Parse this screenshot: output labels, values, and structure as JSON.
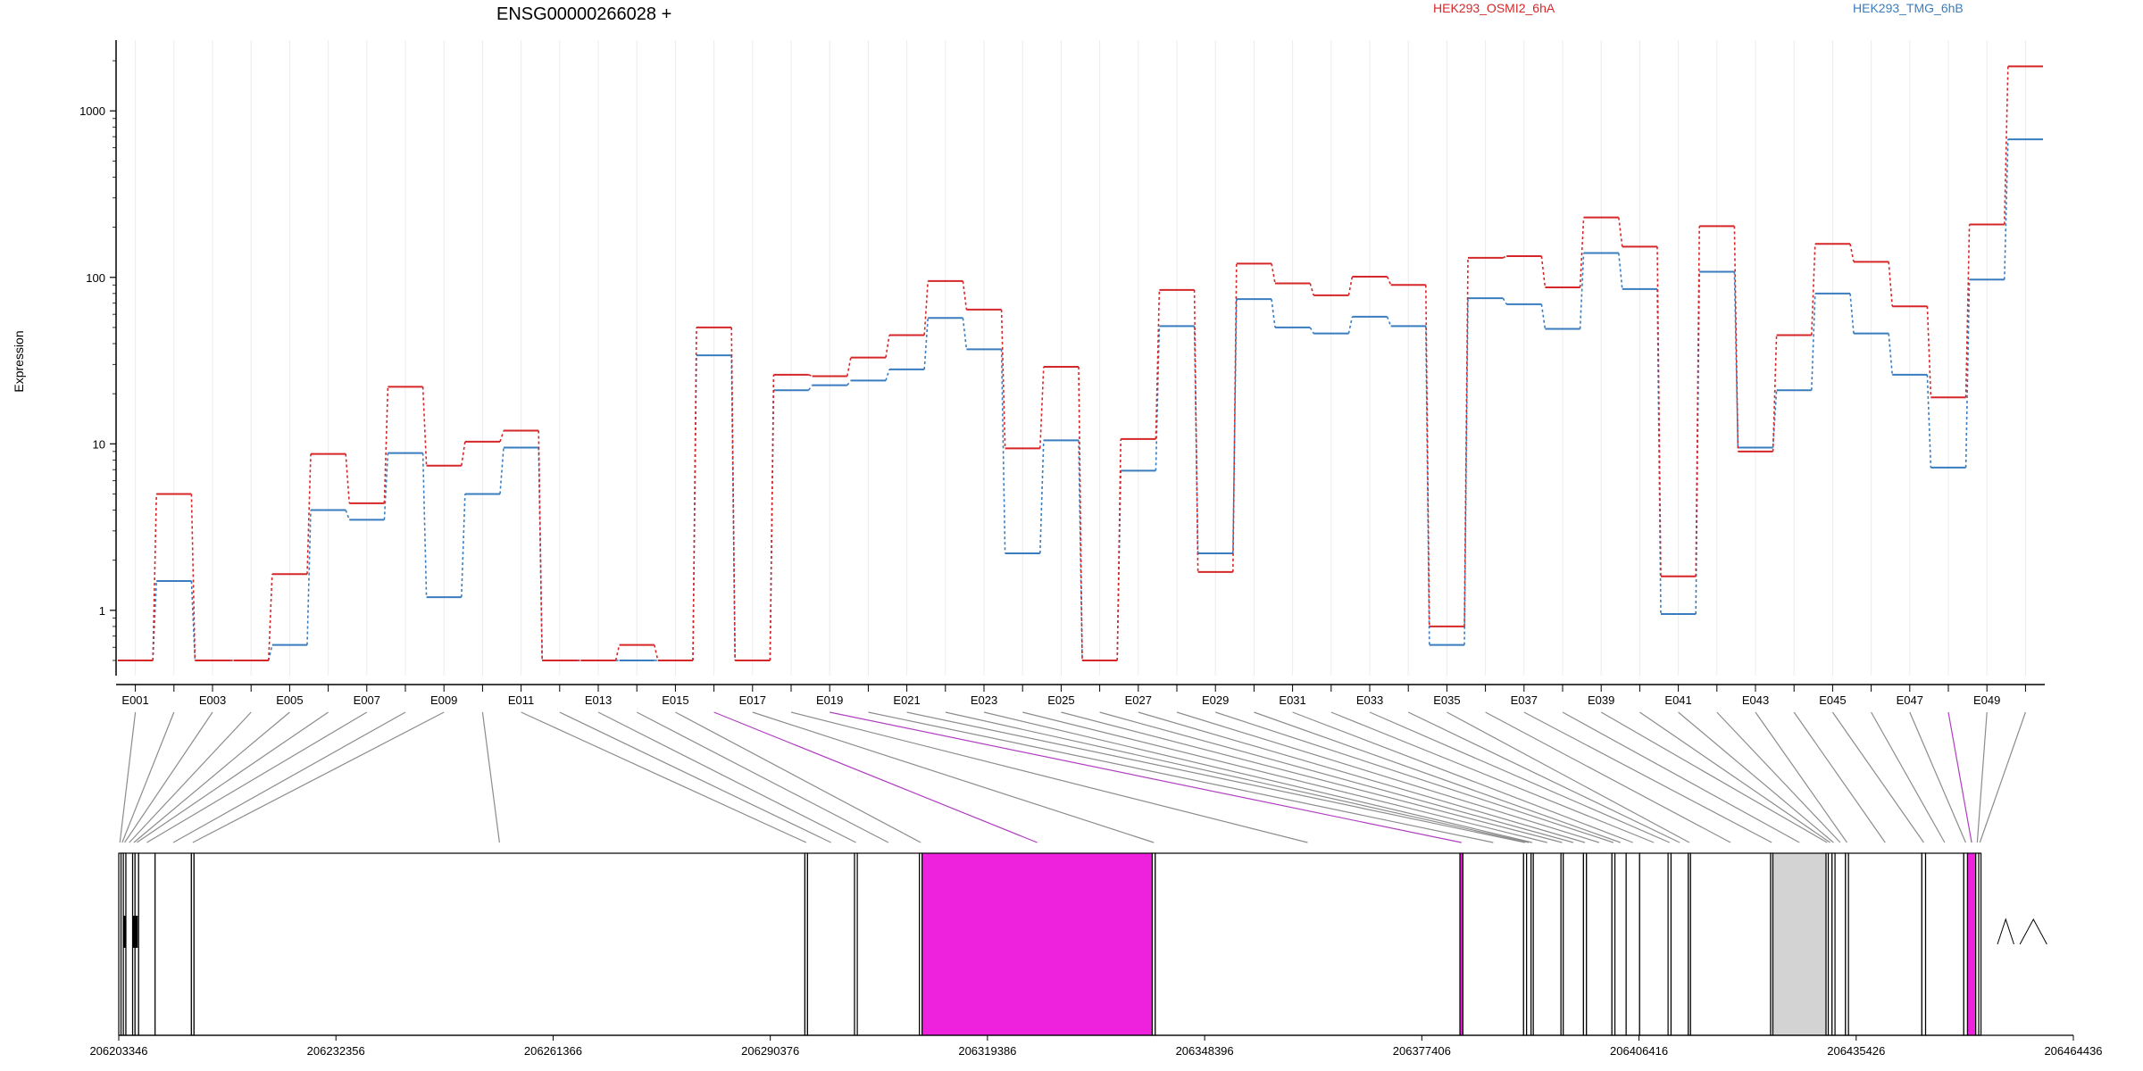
{
  "chart_data": {
    "type": "line",
    "title": "ENSG00000266028 +",
    "ylabel": "Expression",
    "xlabel": "",
    "yscale": "log",
    "ylim": [
      0.5,
      2500
    ],
    "yticks": [
      "1",
      "10",
      "100",
      "1000"
    ],
    "grid": "vertical",
    "legend_position": "top",
    "colors": {
      "series_a": "#d62728",
      "series_b": "#3a7dbf",
      "exon_sig": "#ee22dd",
      "exon_other": "#d3d3d3"
    },
    "bins": [
      "E001",
      "E002",
      "E003",
      "E004",
      "E005",
      "E006",
      "E007",
      "E008",
      "E009",
      "E010",
      "E011",
      "E012",
      "E013",
      "E014",
      "E015",
      "E016",
      "E017",
      "E018",
      "E019",
      "E020",
      "E021",
      "E022",
      "E023",
      "E024",
      "E025",
      "E026",
      "E027",
      "E028",
      "E029",
      "E030",
      "E031",
      "E032",
      "E033",
      "E034",
      "E035",
      "E036",
      "E037",
      "E038",
      "E039",
      "E040",
      "E041",
      "E042",
      "E043",
      "E044",
      "E045",
      "E046",
      "E047",
      "E048",
      "E049",
      "E050"
    ],
    "tick_labels": [
      "E001",
      "E003",
      "E005",
      "E007",
      "E009",
      "E011",
      "E013",
      "E015",
      "E017",
      "E019",
      "E021",
      "E023",
      "E025",
      "E027",
      "E029",
      "E031",
      "E033",
      "E035",
      "E037",
      "E039",
      "E041",
      "E043",
      "E045",
      "E047",
      "E049"
    ],
    "series": [
      {
        "name": "HEK293_OSMI2_6hA",
        "values": [
          0.5,
          5.0,
          0.5,
          0.5,
          1.65,
          8.7,
          4.4,
          22,
          7.4,
          10.3,
          12,
          0.5,
          0.5,
          0.62,
          0.5,
          50,
          0.5,
          26,
          25.5,
          33,
          45,
          95,
          64,
          9.4,
          29,
          0.5,
          10.7,
          84,
          1.7,
          121,
          92,
          78,
          101,
          90,
          0.8,
          131,
          134,
          87,
          229,
          153,
          1.6,
          203,
          9.0,
          45,
          159,
          124,
          67,
          19,
          208,
          1850
        ]
      },
      {
        "name": "HEK293_TMG_6hB",
        "values": [
          0.5,
          1.5,
          0.5,
          0.5,
          0.62,
          4.0,
          3.5,
          8.8,
          1.2,
          5.0,
          9.5,
          0.5,
          0.5,
          0.5,
          0.5,
          34,
          0.5,
          21,
          22.5,
          24,
          28,
          57,
          37,
          2.2,
          10.5,
          0.5,
          6.9,
          51,
          2.2,
          74,
          50,
          46,
          58,
          51,
          0.62,
          75,
          69,
          49,
          140,
          85,
          0.95,
          108,
          9.5,
          21,
          80,
          46,
          26,
          7.2,
          97,
          675
        ]
      }
    ],
    "genomic_ticks": [
      "206203346",
      "206232356",
      "206261366",
      "206290376",
      "206319386",
      "206348396",
      "206377406",
      "206406416",
      "206435426",
      "206464436"
    ],
    "genomic_range": [
      206203346,
      206464436
    ],
    "exon_coords": [
      206203346,
      206203650,
      206203960,
      206204300,
      206205200,
      206205520,
      206206000,
      206208200,
      206213050,
      206213400,
      206295000,
      206295350,
      206301630,
      206302000,
      206310300,
      206310650,
      206341400,
      206341800,
      206382500,
      206382900,
      206391000,
      206391400,
      206392000,
      206392300,
      206396000,
      206396300,
      206399000,
      206399400,
      206402800,
      206403200,
      206404700,
      206406500,
      206410300,
      206410700,
      206413000,
      206413300,
      206424000,
      206424300,
      206431400,
      206431700,
      206432200,
      206432600,
      206434000,
      206434400,
      206444200,
      206444700,
      206449800,
      206450300,
      206451400,
      206451800,
      206452100,
      206452300,
      206452500,
      206453000,
      206453500,
      206454300,
      206456500,
      206457300,
      206460900,
      206464436
    ],
    "exon_fill": [
      "w",
      "w",
      "w",
      "w",
      "w",
      "w",
      "w",
      "w",
      "w",
      "w",
      "w",
      "w",
      "w",
      "w",
      "w",
      "p",
      "w",
      "w",
      "p",
      "w",
      "w",
      "w",
      "w",
      "w",
      "w",
      "w",
      "w",
      "w",
      "w",
      "w",
      "w",
      "w",
      "w",
      "w",
      "w",
      "w",
      "w",
      "g",
      "w",
      "w",
      "w",
      "w",
      "w",
      "w",
      "w",
      "w",
      "w",
      "p",
      "w",
      "w",
      "w",
      "g",
      "g",
      "g",
      "w",
      "w",
      "p",
      "w",
      "w",
      "p"
    ]
  }
}
